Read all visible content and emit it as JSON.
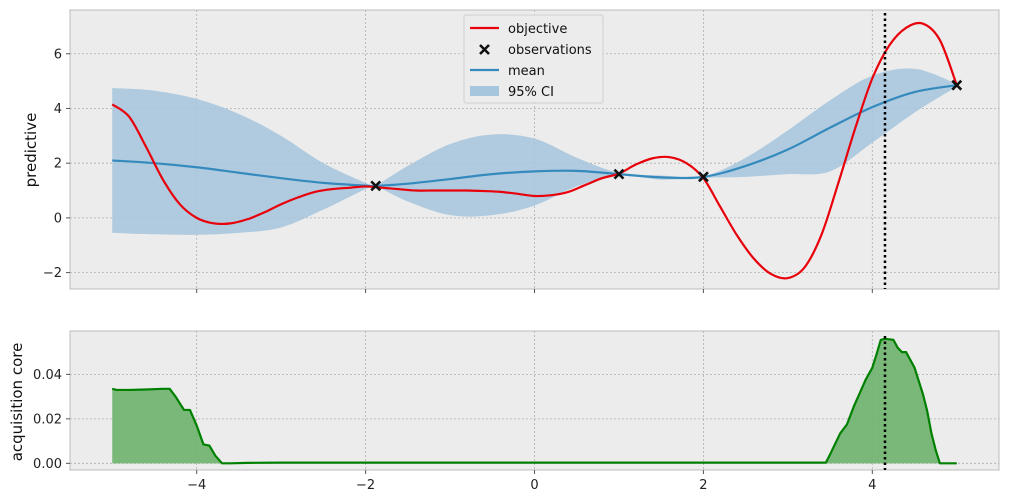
{
  "chart_data": [
    {
      "type": "line",
      "ylabel": "predictive",
      "xlim": [
        -5.5,
        5.5
      ],
      "ylim": [
        -2.6,
        7.6
      ],
      "grid": true,
      "legend_placement": "top-center",
      "xticks": [
        -4,
        -2,
        0,
        2,
        4
      ],
      "yticks": [
        -2,
        0,
        2,
        4,
        6
      ],
      "ytick_labels": [
        "−2",
        "0",
        "2",
        "4",
        "6"
      ],
      "colors": {
        "objective": "#e8000b",
        "mean": "#348abd",
        "ci": "#a6c6dd",
        "observations": "#111111",
        "marker_line": "#000000",
        "background": "#ececec"
      },
      "legend": {
        "objective": "objective",
        "observations": "observations",
        "mean": "mean",
        "ci": "95% CI"
      },
      "series": [
        {
          "name": "objective",
          "style": "line",
          "x": [
            -5,
            -4.8,
            -4.6,
            -4.4,
            -4.2,
            -4,
            -3.8,
            -3.6,
            -3.4,
            -3.2,
            -3,
            -2.8,
            -2.6,
            -2.4,
            -2.2,
            -2,
            -1.8,
            -1.6,
            -1.4,
            -1.2,
            -1,
            -0.8,
            -0.6,
            -0.4,
            -0.2,
            0,
            0.2,
            0.4,
            0.6,
            0.8,
            1,
            1.2,
            1.4,
            1.6,
            1.8,
            2,
            2.2,
            2.4,
            2.6,
            2.8,
            3,
            3.2,
            3.4,
            3.6,
            3.8,
            4,
            4.2,
            4.4,
            4.6,
            4.8,
            5
          ],
          "y": [
            4.15,
            3.7,
            2.6,
            1.4,
            0.5,
            0.0,
            -0.2,
            -0.2,
            -0.05,
            0.2,
            0.5,
            0.75,
            0.95,
            1.05,
            1.1,
            1.15,
            1.1,
            1.05,
            1.0,
            1.0,
            1.0,
            1.0,
            0.98,
            0.95,
            0.88,
            0.8,
            0.83,
            0.95,
            1.2,
            1.45,
            1.62,
            1.95,
            2.18,
            2.22,
            2.0,
            1.45,
            0.4,
            -0.65,
            -1.5,
            -2.05,
            -2.2,
            -1.8,
            -0.6,
            1.3,
            3.3,
            5.1,
            6.3,
            6.95,
            7.1,
            6.5,
            4.85
          ]
        },
        {
          "name": "mean",
          "style": "line",
          "x": [
            -5,
            -4.5,
            -4,
            -3.5,
            -3,
            -2.5,
            -2,
            -1.88,
            -1.5,
            -1,
            -0.5,
            0,
            0.5,
            1,
            1.5,
            2,
            2.5,
            3,
            3.5,
            4,
            4.5,
            5
          ],
          "y": [
            2.1,
            2.0,
            1.85,
            1.65,
            1.45,
            1.28,
            1.18,
            1.17,
            1.25,
            1.42,
            1.6,
            1.7,
            1.72,
            1.6,
            1.48,
            1.5,
            1.9,
            2.5,
            3.3,
            4.05,
            4.6,
            4.85
          ]
        },
        {
          "name": "95% CI",
          "style": "band",
          "x": [
            -5,
            -4.5,
            -4,
            -3.5,
            -3,
            -2.5,
            -2,
            -1.88,
            -1.5,
            -1,
            -0.5,
            0,
            0.5,
            1,
            1.5,
            2,
            2.5,
            3,
            3.5,
            4,
            4.5,
            5
          ],
          "upper": [
            4.75,
            4.65,
            4.35,
            3.8,
            3.0,
            2.0,
            1.28,
            1.2,
            1.9,
            2.7,
            3.05,
            2.9,
            2.2,
            1.65,
            1.55,
            1.52,
            2.2,
            3.2,
            4.3,
            5.2,
            5.45,
            4.9
          ],
          "lower": [
            -0.55,
            -0.6,
            -0.62,
            -0.55,
            -0.35,
            0.3,
            1.05,
            1.15,
            0.6,
            0.1,
            0.1,
            0.45,
            1.15,
            1.55,
            1.4,
            1.47,
            1.5,
            1.6,
            1.7,
            2.75,
            3.85,
            4.8
          ]
        },
        {
          "name": "observations",
          "style": "marker",
          "x": [
            -1.88,
            1.0,
            2.0,
            5.0
          ],
          "y": [
            1.17,
            1.6,
            1.5,
            4.85
          ]
        }
      ],
      "vline_x": 4.15
    },
    {
      "type": "area",
      "ylabel": "acquisition core",
      "xlim": [
        -5.5,
        5.5
      ],
      "ylim": [
        -0.003,
        0.0595
      ],
      "grid": true,
      "xticks": [
        -4,
        -2,
        0,
        2,
        4
      ],
      "xtick_labels": [
        "−4",
        "−2",
        "0",
        "2",
        "4"
      ],
      "yticks": [
        0.0,
        0.02,
        0.04
      ],
      "ytick_labels": [
        "0.00",
        "0.02",
        "0.04"
      ],
      "colors": {
        "line": "#008000",
        "fill": "#6db36d",
        "marker_line": "#000000",
        "background": "#ececec"
      },
      "series": [
        {
          "name": "acquisition",
          "x": [
            -5,
            -4.95,
            -4.8,
            -4.6,
            -4.4,
            -4.32,
            -4.25,
            -4.15,
            -4.08,
            -4.0,
            -3.92,
            -3.85,
            -3.78,
            -3.7,
            -3.6,
            -3.4,
            -3,
            -2,
            -1,
            0,
            1,
            2,
            3,
            3.45,
            3.5,
            3.55,
            3.62,
            3.7,
            3.78,
            3.85,
            3.92,
            4.0,
            4.05,
            4.1,
            4.15,
            4.25,
            4.3,
            4.35,
            4.4,
            4.5,
            4.6,
            4.65,
            4.7,
            4.75,
            4.8,
            5.0
          ],
          "y": [
            0.0335,
            0.033,
            0.033,
            0.0332,
            0.0335,
            0.0335,
            0.03,
            0.024,
            0.024,
            0.017,
            0.0085,
            0.008,
            0.0035,
            0.0,
            0.0,
            0.0002,
            0.0003,
            0.0003,
            0.0003,
            0.0003,
            0.0003,
            0.0003,
            0.0003,
            0.0003,
            0.004,
            0.008,
            0.0135,
            0.0175,
            0.0255,
            0.0315,
            0.0375,
            0.043,
            0.049,
            0.0555,
            0.056,
            0.0555,
            0.052,
            0.05,
            0.05,
            0.043,
            0.031,
            0.0235,
            0.0135,
            0.006,
            0.0,
            0.0
          ]
        }
      ],
      "vline_x": 4.15
    }
  ]
}
